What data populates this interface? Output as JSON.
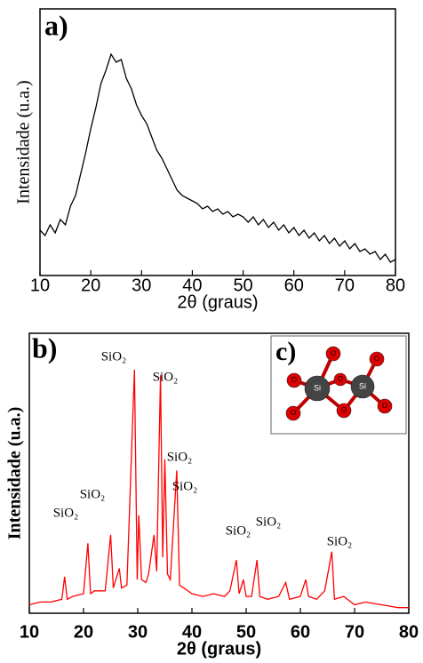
{
  "chart_data": [
    {
      "type": "line",
      "label": "a)",
      "xlabel": "2θ (graus)",
      "ylabel": "Intensidade (u.a.)",
      "xlim": [
        10,
        80
      ],
      "xticks": [
        10,
        20,
        30,
        40,
        50,
        60,
        70,
        80
      ],
      "ylim": [
        0,
        100
      ],
      "series": [
        {
          "color": "#000000",
          "x": [
            10,
            11,
            12,
            13,
            14,
            15,
            16,
            17,
            18,
            19,
            20,
            21,
            22,
            23,
            24,
            25,
            26,
            27,
            28,
            29,
            30,
            31,
            32,
            33,
            34,
            35,
            36,
            37,
            38,
            39,
            40,
            41,
            42,
            43,
            44,
            45,
            46,
            47,
            48,
            49,
            50,
            51,
            52,
            53,
            54,
            55,
            56,
            57,
            58,
            59,
            60,
            61,
            62,
            63,
            64,
            65,
            66,
            67,
            68,
            69,
            70,
            71,
            72,
            73,
            74,
            75,
            76,
            77,
            78,
            79,
            80
          ],
          "values": [
            17,
            15,
            19,
            16,
            21,
            19,
            26,
            30,
            38,
            46,
            55,
            63,
            72,
            77,
            83,
            80,
            81,
            74,
            70,
            64,
            60,
            57,
            52,
            47,
            44,
            40,
            36,
            32,
            30,
            29,
            28,
            27,
            25,
            26,
            24,
            25,
            23,
            24,
            22,
            23,
            22,
            20,
            22,
            19,
            21,
            18,
            20,
            17,
            19,
            16,
            18,
            15,
            17,
            14,
            16,
            13,
            15,
            12,
            14,
            11,
            13,
            10,
            12,
            9,
            10,
            8,
            9,
            6,
            8,
            5,
            6
          ]
        }
      ]
    },
    {
      "type": "line",
      "label": "b)",
      "xlabel": "2θ (graus)",
      "ylabel": "Intensidade (u.a.)",
      "xlim": [
        10,
        80
      ],
      "xticks": [
        10,
        20,
        30,
        40,
        50,
        60,
        70,
        80
      ],
      "ylim": [
        0,
        100
      ],
      "series": [
        {
          "color": "#ff0000",
          "x": [
            10,
            12,
            14,
            16,
            16.5,
            17,
            18,
            20,
            20.8,
            21.3,
            22,
            24,
            25,
            25.5,
            26.6,
            27,
            28,
            29.4,
            29.9,
            30.2,
            30.7,
            31.5,
            32,
            33,
            33.5,
            34.2,
            34.6,
            35,
            35.5,
            36,
            37.2,
            37.7,
            38.5,
            40,
            42,
            44,
            46,
            47,
            48.2,
            48.7,
            49.5,
            50,
            51,
            52,
            52.5,
            54,
            56,
            57.3,
            58,
            60,
            61,
            61.5,
            63,
            64.5,
            65.8,
            66.3,
            68,
            70,
            72,
            75,
            78,
            80
          ],
          "values": [
            3,
            4,
            4,
            5,
            13,
            5,
            6,
            7,
            25,
            7,
            8,
            8,
            28,
            9,
            16,
            9,
            10,
            87,
            12,
            35,
            12,
            11,
            14,
            28,
            15,
            85,
            20,
            55,
            14,
            12,
            51,
            10,
            9,
            7,
            6,
            7,
            6,
            8,
            19,
            7,
            12,
            6,
            6,
            19,
            6,
            5,
            6,
            11,
            5,
            6,
            12,
            6,
            5,
            8,
            22,
            5,
            6,
            3,
            4,
            3,
            2,
            2
          ]
        }
      ],
      "annotations": [
        "SiO₂",
        "SiO₂",
        "SiO₂",
        "SiO₂",
        "SiO₂",
        "SiO₂",
        "SiO₂",
        "SiO₂",
        "SiO₂"
      ],
      "inset": {
        "label": "c)",
        "atoms": [
          "Si",
          "Si",
          "O",
          "O",
          "O",
          "O",
          "O",
          "O",
          "O"
        ]
      }
    }
  ]
}
